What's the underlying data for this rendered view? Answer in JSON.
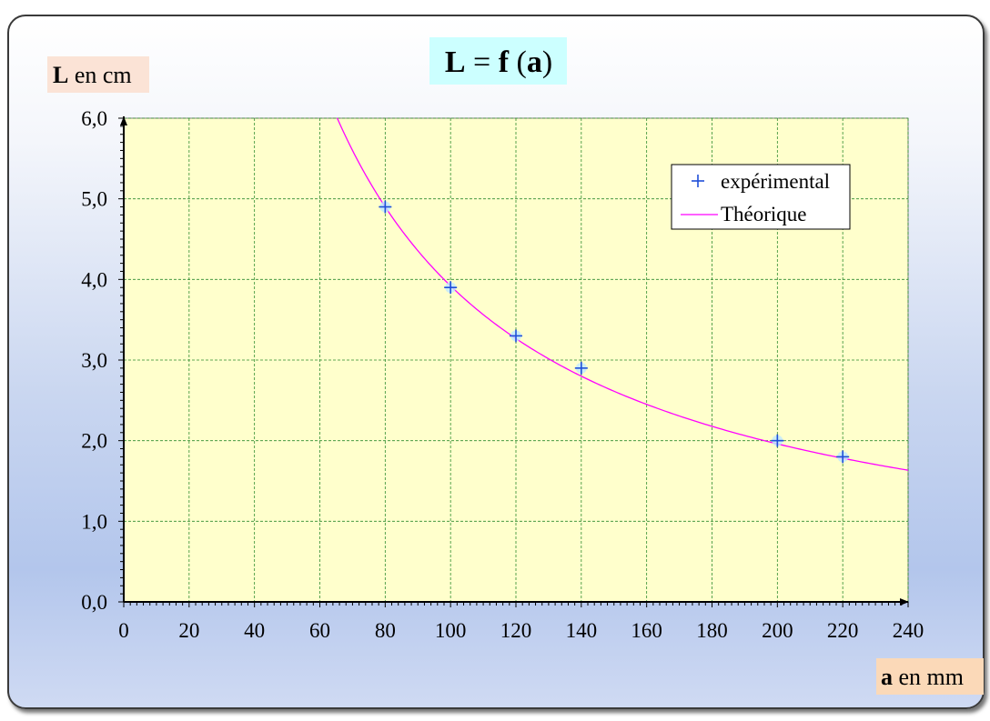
{
  "chart_data": {
    "type": "scatter",
    "title": "L = f (a)",
    "title_parts": {
      "left": "L",
      "eq": " = ",
      "f": "f",
      "paren_open": " (",
      "arg": "a",
      "paren_close": ")"
    },
    "ylabel": "L en cm",
    "ylabel_parts": {
      "bold": "L",
      "rest": " en cm"
    },
    "xlabel": "a en mm",
    "xlabel_parts": {
      "bold": "a",
      "rest": " en mm"
    },
    "xlim": [
      0,
      240
    ],
    "ylim": [
      0,
      6
    ],
    "x_ticks": [
      0,
      20,
      40,
      60,
      80,
      100,
      120,
      140,
      160,
      180,
      200,
      220,
      240
    ],
    "x_tick_labels": [
      "0",
      "20",
      "40",
      "60",
      "80",
      "100",
      "120",
      "140",
      "160",
      "180",
      "200",
      "220",
      "240"
    ],
    "y_ticks": [
      0,
      1,
      2,
      3,
      4,
      5,
      6
    ],
    "y_tick_labels": [
      "0,0",
      "1,0",
      "2,0",
      "3,0",
      "4,0",
      "5,0",
      "6,0"
    ],
    "grid": true,
    "legend_position": "top-right",
    "series": [
      {
        "name": "expérimental",
        "kind": "points",
        "marker": "plus",
        "x": [
          80,
          100,
          120,
          140,
          200,
          220
        ],
        "y": [
          4.9,
          3.9,
          3.3,
          2.9,
          2.0,
          1.8
        ]
      },
      {
        "name": "Théorique",
        "kind": "curve",
        "relation": "L = 392 / a",
        "k": 392,
        "x_start": 65.3,
        "x_end": 240
      }
    ]
  },
  "colors": {
    "plot_bg": "#ffffcc",
    "grid": "#2e8b2e",
    "curve": "#ff00ff",
    "marker": "#1f4fd8",
    "marker_halo": "#bfe8ff",
    "title_bg": "#ccffff",
    "ylabel_bg": "#fbe3d6",
    "xlabel_bg": "#fbd9b8",
    "axis": "#000000"
  }
}
